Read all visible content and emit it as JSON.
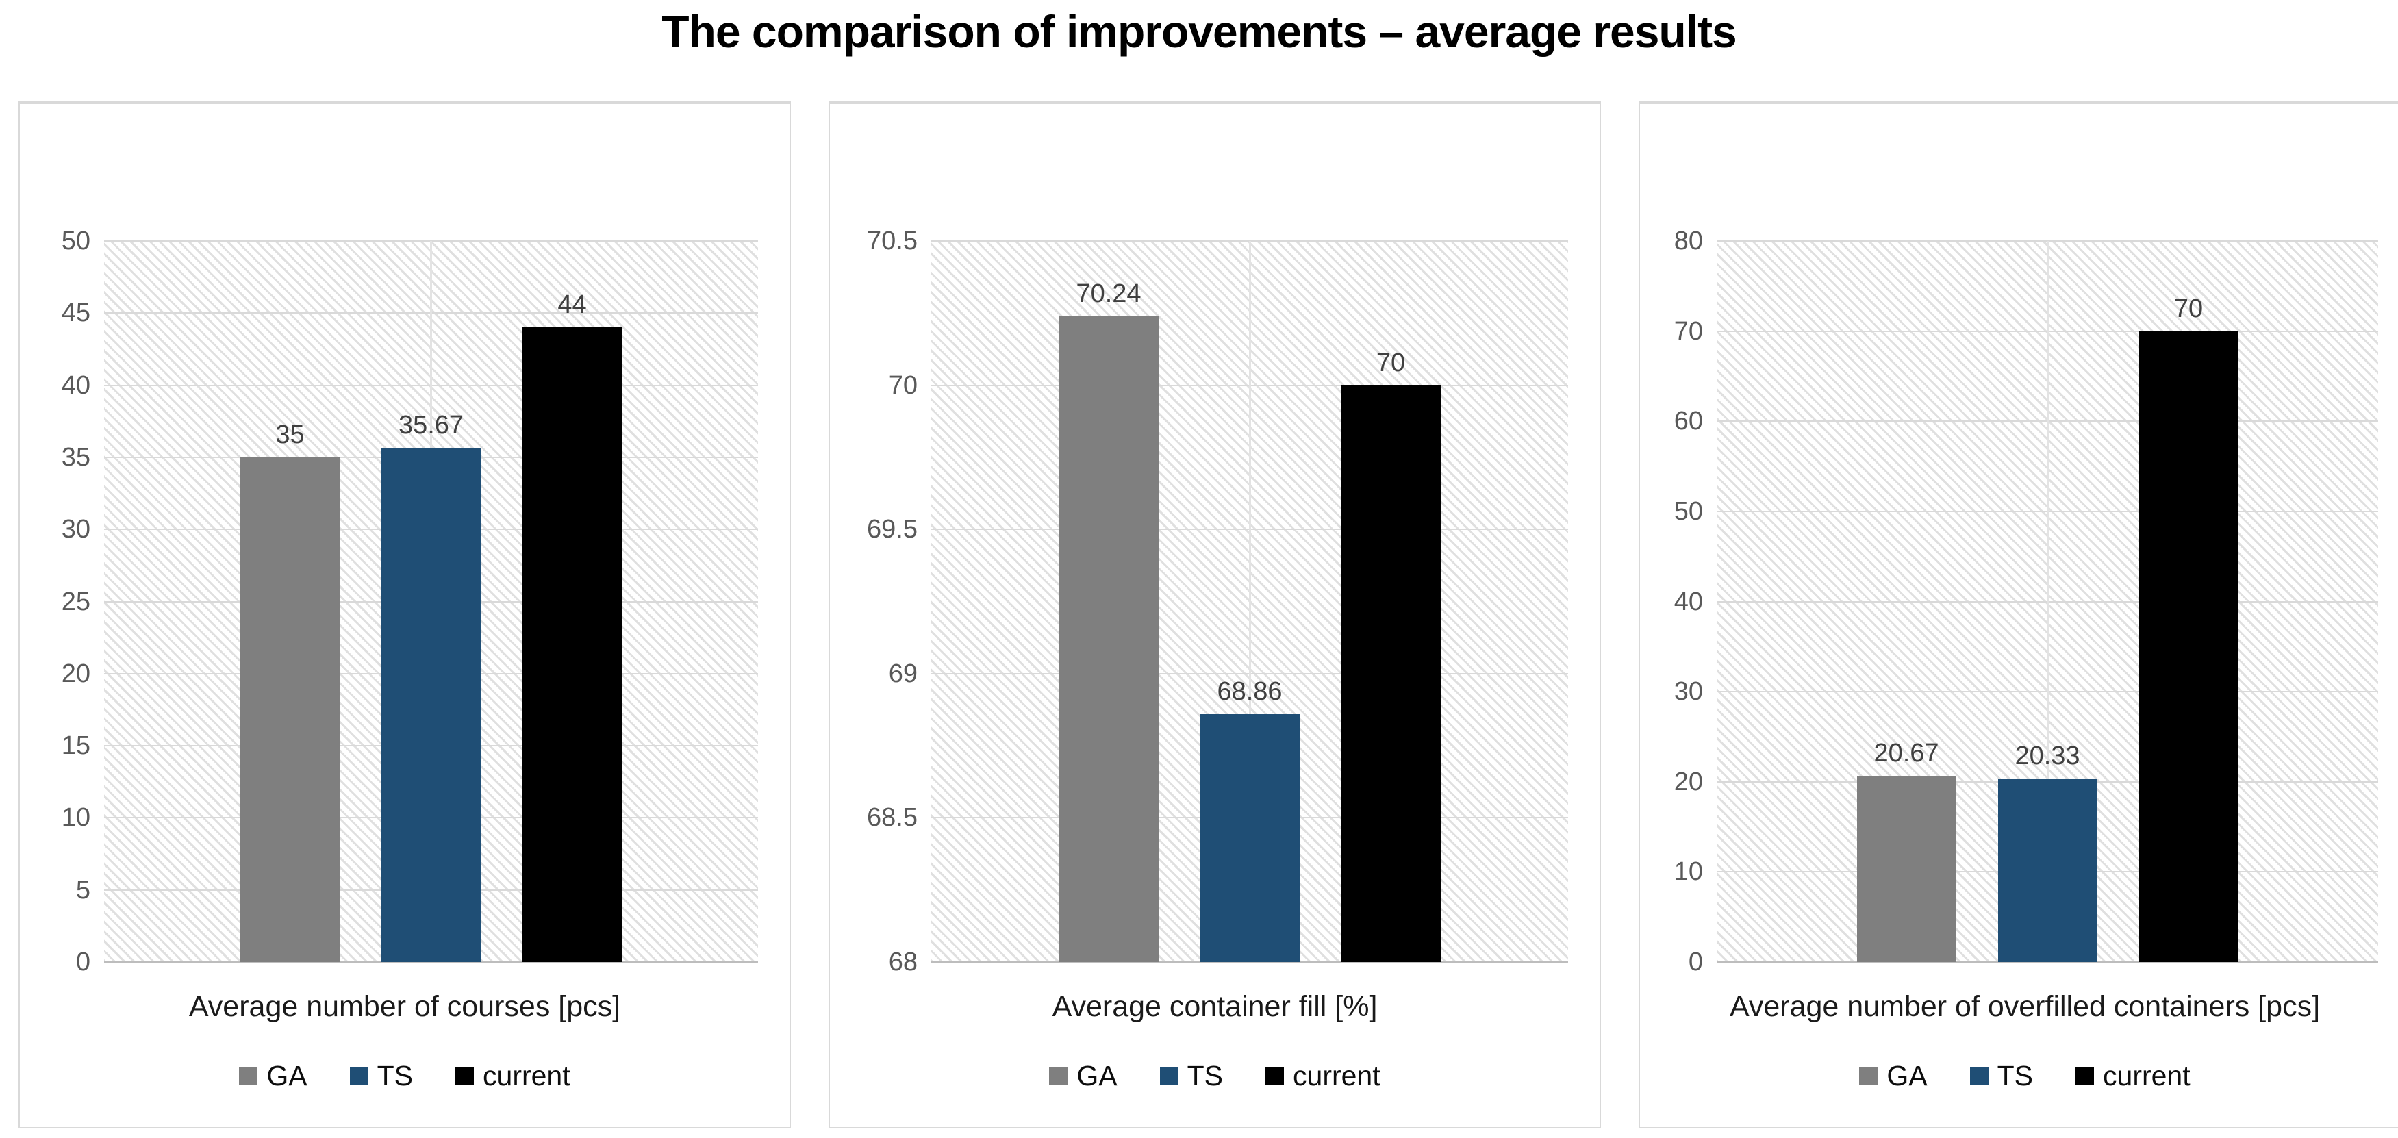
{
  "title": "The comparison of improvements – average results",
  "legend": [
    {
      "label": "GA",
      "color": "#7F7F7F"
    },
    {
      "label": "TS",
      "color": "#1F4E75"
    },
    {
      "label": "current",
      "color": "#000000"
    }
  ],
  "colors": {
    "ga_series": "#7F7F7F",
    "ts_series": "#1F4E75",
    "current_series": "#000000",
    "gridline": "#d9d9d9",
    "tick_text": "#595959",
    "value_label_text": "#404040"
  },
  "chart_data": [
    {
      "type": "bar",
      "xlabel": "Average number of courses [pcs]",
      "ylim": [
        0,
        50
      ],
      "ytick_step": 5,
      "grid": "horizontal-major",
      "legend_position": "bottom",
      "plot_background": "light-diagonal-hatch",
      "yticks": [
        {
          "value": 0,
          "label": "0"
        },
        {
          "value": 5,
          "label": "5"
        },
        {
          "value": 10,
          "label": "10"
        },
        {
          "value": 15,
          "label": "15"
        },
        {
          "value": 20,
          "label": "20"
        },
        {
          "value": 25,
          "label": "25"
        },
        {
          "value": 30,
          "label": "30"
        },
        {
          "value": 35,
          "label": "35"
        },
        {
          "value": 40,
          "label": "40"
        },
        {
          "value": 45,
          "label": "45"
        },
        {
          "value": 50,
          "label": "50"
        }
      ],
      "bars": [
        {
          "series": "GA",
          "value": 35,
          "label": "35",
          "color": "#7F7F7F"
        },
        {
          "series": "TS",
          "value": 35.67,
          "label": "35.67",
          "color": "#1F4E75"
        },
        {
          "series": "current",
          "value": 44,
          "label": "44",
          "color": "#000000"
        }
      ]
    },
    {
      "type": "bar",
      "xlabel": "Average container fill [%]",
      "ylim": [
        68,
        70.5
      ],
      "ytick_step": 0.5,
      "grid": "horizontal-major",
      "legend_position": "bottom",
      "plot_background": "light-diagonal-hatch",
      "yticks": [
        {
          "value": 68,
          "label": "68"
        },
        {
          "value": 68.5,
          "label": "68.5"
        },
        {
          "value": 69,
          "label": "69"
        },
        {
          "value": 69.5,
          "label": "69.5"
        },
        {
          "value": 70,
          "label": "70"
        },
        {
          "value": 70.5,
          "label": "70.5"
        }
      ],
      "bars": [
        {
          "series": "GA",
          "value": 70.24,
          "label": "70.24",
          "color": "#7F7F7F"
        },
        {
          "series": "TS",
          "value": 68.86,
          "label": "68.86",
          "color": "#1F4E75"
        },
        {
          "series": "current",
          "value": 70,
          "label": "70",
          "color": "#000000"
        }
      ]
    },
    {
      "type": "bar",
      "xlabel": "Average number of overfilled containers [pcs]",
      "ylim": [
        0,
        80
      ],
      "ytick_step": 10,
      "grid": "horizontal-major",
      "legend_position": "bottom",
      "plot_background": "light-diagonal-hatch",
      "yticks": [
        {
          "value": 0,
          "label": "0"
        },
        {
          "value": 10,
          "label": "10"
        },
        {
          "value": 20,
          "label": "20"
        },
        {
          "value": 30,
          "label": "30"
        },
        {
          "value": 40,
          "label": "40"
        },
        {
          "value": 50,
          "label": "50"
        },
        {
          "value": 60,
          "label": "60"
        },
        {
          "value": 70,
          "label": "70"
        },
        {
          "value": 80,
          "label": "80"
        }
      ],
      "bars": [
        {
          "series": "GA",
          "value": 20.67,
          "label": "20.67",
          "color": "#7F7F7F"
        },
        {
          "series": "TS",
          "value": 20.33,
          "label": "20.33",
          "color": "#1F4E75"
        },
        {
          "series": "current",
          "value": 70,
          "label": "70",
          "color": "#000000"
        }
      ]
    }
  ]
}
